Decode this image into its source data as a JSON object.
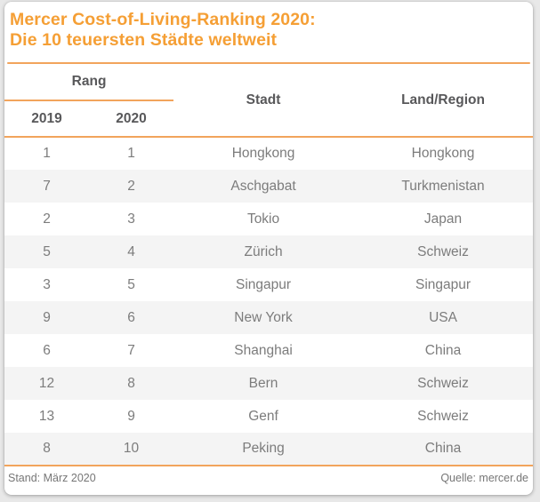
{
  "header": {
    "title_line1": "Mercer Cost-of-Living-Ranking 2020:",
    "title_line2": "Die 10 teuersten Städte weltweit"
  },
  "chart_data": {
    "type": "table",
    "title": "Mercer Cost-of-Living-Ranking 2020: Die 10 teuersten Städte weltweit",
    "column_group_label": "Rang",
    "column_group_span": [
      "2019",
      "2020"
    ],
    "columns": [
      "Rang 2019",
      "Rang 2020",
      "Stadt",
      "Land/Region"
    ],
    "header_labels": {
      "rank_group": "Rang",
      "rank_2019": "2019",
      "rank_2020": "2020",
      "city": "Stadt",
      "country": "Land/Region"
    },
    "rows": [
      [
        "1",
        "1",
        "Hongkong",
        "Hongkong"
      ],
      [
        "7",
        "2",
        "Aschgabat",
        "Turkmenistan"
      ],
      [
        "2",
        "3",
        "Tokio",
        "Japan"
      ],
      [
        "5",
        "4",
        "Zürich",
        "Schweiz"
      ],
      [
        "3",
        "5",
        "Singapur",
        "Singapur"
      ],
      [
        "9",
        "6",
        "New York",
        "USA"
      ],
      [
        "6",
        "7",
        "Shanghai",
        "China"
      ],
      [
        "12",
        "8",
        "Bern",
        "Schweiz"
      ],
      [
        "13",
        "9",
        "Genf",
        "Schweiz"
      ],
      [
        "8",
        "10",
        "Peking",
        "China"
      ]
    ],
    "layout_hints": {
      "zebra_striping": "even rows shaded",
      "all_cells_centered": true,
      "rank_group_underlined": true
    }
  },
  "footer": {
    "status": "Stand: März 2020",
    "source": "Quelle: mercer.de"
  },
  "colors": {
    "accent": "#f2a45c",
    "title": "#f59f35",
    "header_text": "#58585a",
    "cell_text": "#7c7c7c",
    "footer_text": "#767676",
    "stripe": "#f4f4f4",
    "card_bg": "#ffffff",
    "page_bg": "#e8e8e8"
  }
}
